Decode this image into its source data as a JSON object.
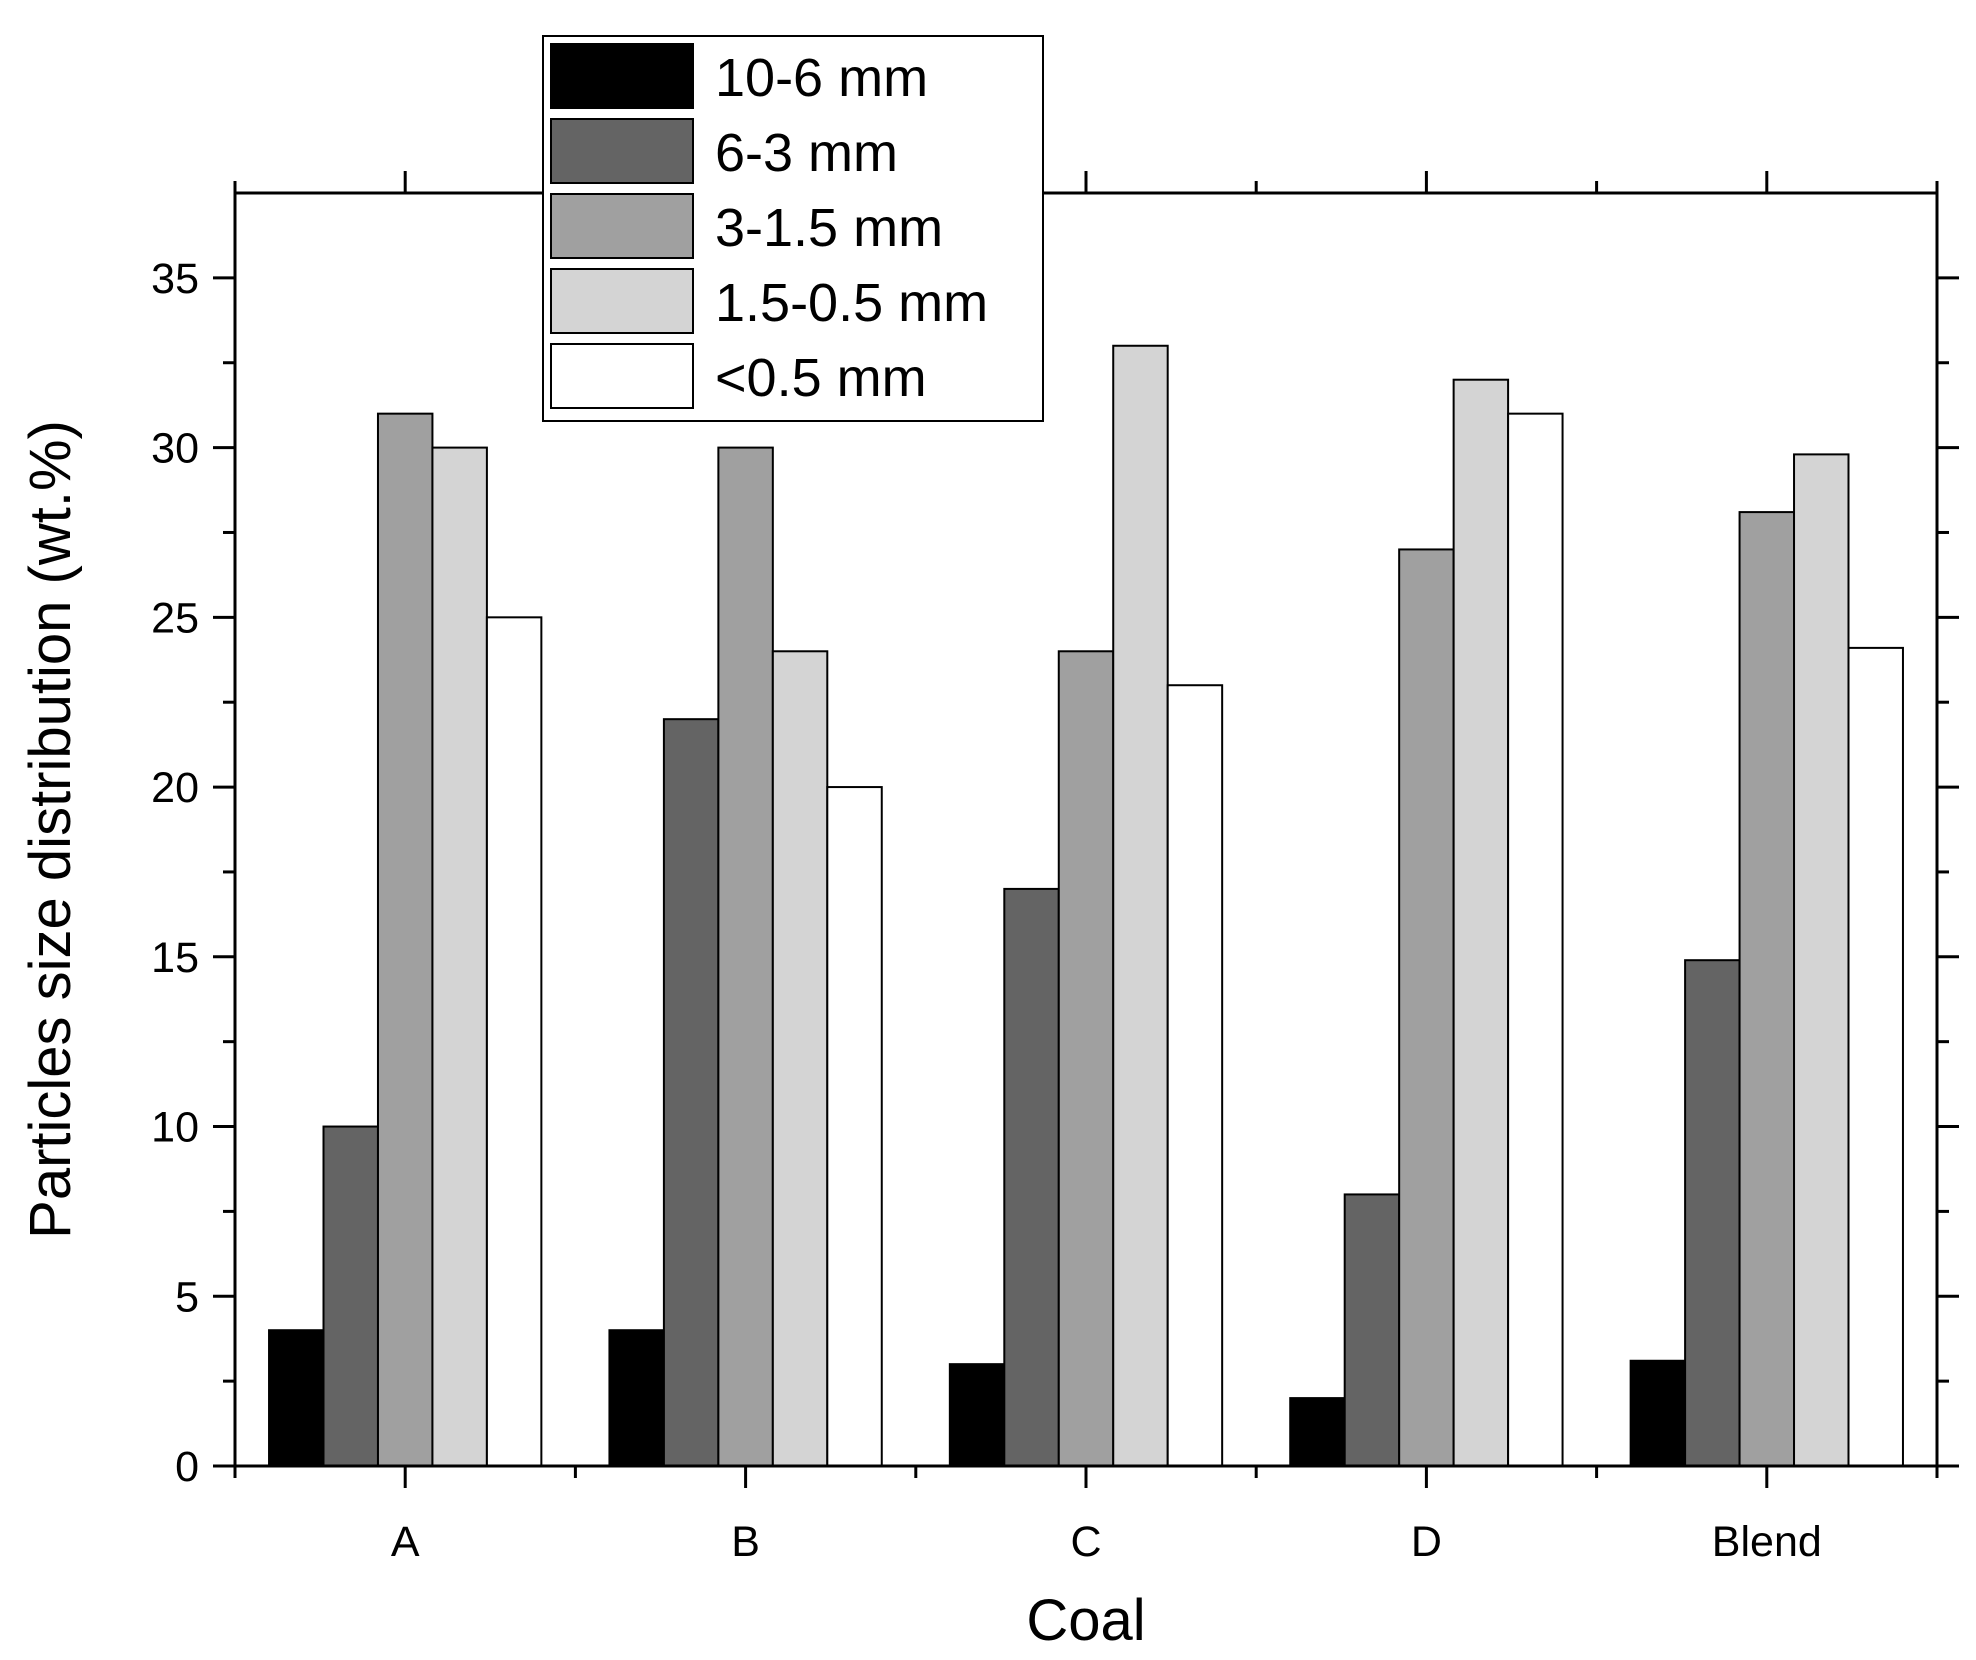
{
  "chart_data": {
    "type": "bar",
    "title": "",
    "xlabel": "Coal",
    "ylabel": "Particles size distribution (wt.%)",
    "categories": [
      "A",
      "B",
      "C",
      "D",
      "Blend"
    ],
    "ylim": [
      0,
      37.5
    ],
    "yticks": [
      "0",
      "5",
      "10",
      "15",
      "20",
      "25",
      "30",
      "35"
    ],
    "grid": false,
    "legend_position": "top-left",
    "series": [
      {
        "name": "10-6 mm",
        "color": "#000000",
        "values": [
          4,
          4,
          3,
          2,
          3.1
        ]
      },
      {
        "name": "6-3 mm",
        "color": "#646464",
        "values": [
          10,
          22,
          17,
          8,
          14.9
        ]
      },
      {
        "name": "3-1.5 mm",
        "color": "#a0a0a0",
        "values": [
          31,
          30,
          24,
          27,
          28.1
        ]
      },
      {
        "name": "1.5-0.5 mm",
        "color": "#d4d4d4",
        "values": [
          30,
          24,
          33,
          32,
          29.8
        ]
      },
      {
        "name": "<0.5 mm",
        "color": "#ffffff",
        "values": [
          25,
          20,
          23,
          31,
          24.1
        ]
      }
    ]
  }
}
